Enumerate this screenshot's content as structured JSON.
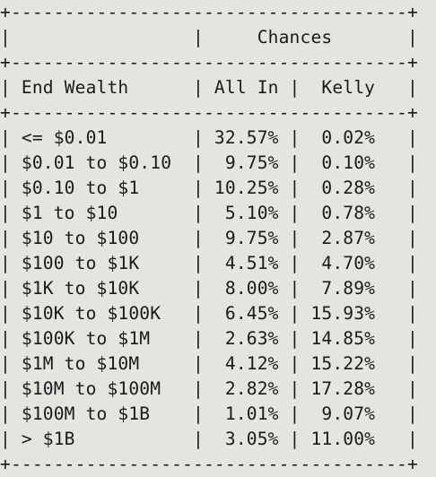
{
  "table": {
    "lines": [
      "+-------------------------------------+",
      "|                 |     Chances       |",
      "+-------------------------------------+",
      "| End Wealth      | All In |  Kelly   |",
      "+-------------------------------------+",
      "| <= $0.01        | 32.57% |  0.02%   |",
      "| $0.01 to $0.10  |  9.75% |  0.10%   |",
      "| $0.10 to $1     | 10.25% |  0.28%   |",
      "| $1 to $10       |  5.10% |  0.78%   |",
      "| $10 to $100     |  9.75% |  2.87%   |",
      "| $100 to $1K     |  4.51% |  4.70%   |",
      "| $1K to $10K     |  8.00% |  7.89%   |",
      "| $10K to $100K   |  6.45% | 15.93%   |",
      "| $100K to $1M    |  2.63% | 14.85%   |",
      "| $1M to $10M     |  4.12% | 15.22%   |",
      "| $10M to $100M   |  2.82% | 17.28%   |",
      "| $100M to $1B    |  1.01% |  9.07%   |",
      "| > $1B           |  3.05% | 11.00%   |",
      "+-------------------------------------+"
    ]
  }
}
